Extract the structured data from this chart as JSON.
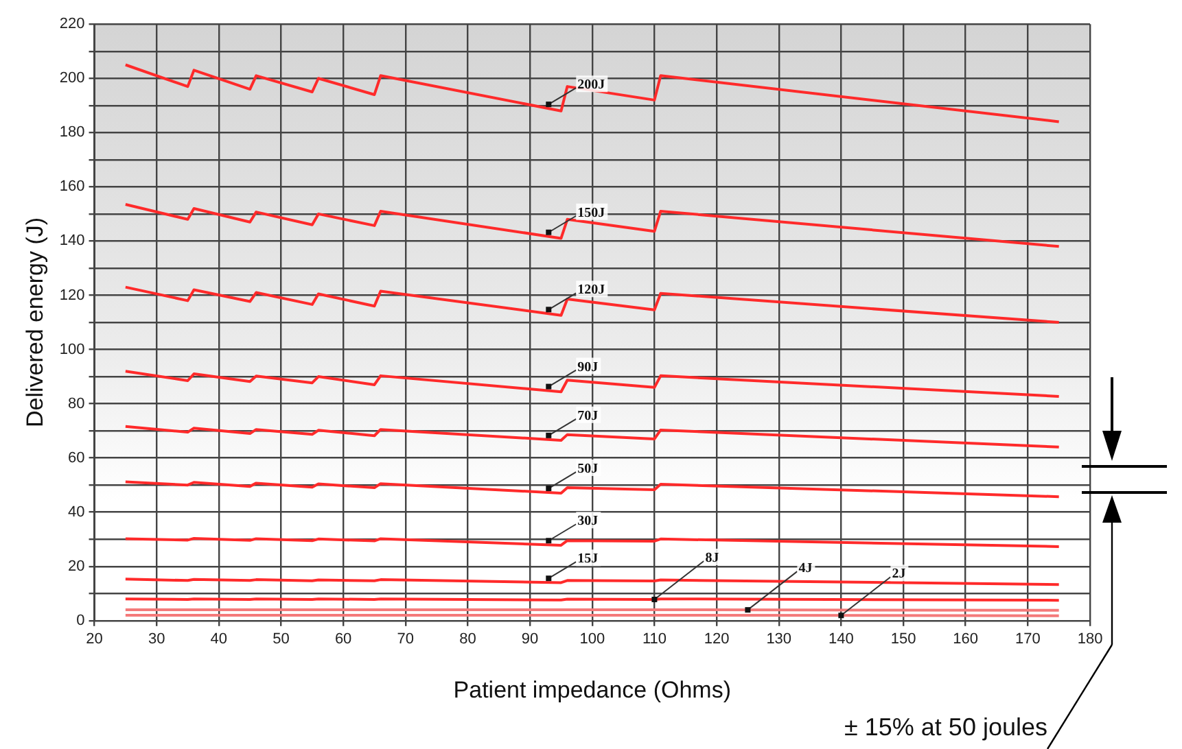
{
  "chart_data": {
    "type": "line",
    "xlabel": "Patient impedance (Ohms)",
    "ylabel": "Delivered energy (J)",
    "xlim": [
      20,
      180
    ],
    "xticks": [
      20,
      30,
      40,
      50,
      60,
      70,
      80,
      90,
      100,
      110,
      120,
      130,
      140,
      150,
      160,
      170,
      180
    ],
    "ylim": [
      0,
      220
    ],
    "yticks": [
      0,
      {
        "value": 10,
        "label": null
      },
      20,
      {
        "value": 30,
        "label": null
      },
      40,
      {
        "value": 50,
        "label": null
      },
      60,
      {
        "value": 70,
        "label": null
      },
      80,
      {
        "value": 90,
        "label": null
      },
      100,
      {
        "value": 110,
        "label": null
      },
      120,
      {
        "value": 130,
        "label": null
      },
      140,
      {
        "value": 150,
        "label": null
      },
      160,
      {
        "value": 170,
        "label": null
      },
      180,
      {
        "value": 190,
        "label": null
      },
      200,
      {
        "value": 210,
        "label": null
      },
      220
    ],
    "grid": true,
    "legend": false,
    "marker": "none",
    "line_style": "solid",
    "x": [
      25,
      35,
      36,
      45,
      46,
      55,
      56,
      65,
      66,
      95,
      96,
      110,
      111,
      175
    ],
    "series": [
      {
        "name": "200J",
        "color": "#ff2a2a",
        "values": [
          205,
          197,
          203,
          196,
          201,
          195,
          200,
          194,
          201,
          188,
          197,
          192,
          201,
          184
        ]
      },
      {
        "name": "150J",
        "color": "#ff2a2a",
        "values": [
          153.5,
          148,
          152,
          147,
          150.7,
          146,
          150,
          145.7,
          151,
          141,
          148,
          143.6,
          151,
          138
        ]
      },
      {
        "name": "120J",
        "color": "#ff2a2a",
        "values": [
          123,
          118,
          122,
          117.7,
          121,
          116.6,
          120.5,
          116,
          121.5,
          112.6,
          118.6,
          114.6,
          120.7,
          110
        ]
      },
      {
        "name": "90J",
        "color": "#ff2a2a",
        "values": [
          92,
          88.5,
          91,
          88.2,
          90.2,
          87.7,
          90,
          87,
          90.3,
          84.4,
          88.7,
          86,
          90.3,
          82.7
        ]
      },
      {
        "name": "70J",
        "color": "#ff2a2a",
        "values": [
          71.6,
          69.5,
          71,
          69,
          70.5,
          68.7,
          70.2,
          68.2,
          70.5,
          66.5,
          68.6,
          67,
          70.3,
          64
        ]
      },
      {
        "name": "50J",
        "color": "#ff2a2a",
        "values": [
          51.2,
          50,
          51,
          49.5,
          50.7,
          49.2,
          50.4,
          49,
          50.5,
          47,
          49,
          48.3,
          50.3,
          45.7
        ]
      },
      {
        "name": "30J",
        "color": "#ff2a2a",
        "values": [
          30.2,
          29.7,
          30.3,
          29.6,
          30.2,
          29.5,
          30.1,
          29.4,
          30.2,
          27.8,
          29.5,
          29.3,
          30.1,
          27.3
        ]
      },
      {
        "name": "15J",
        "color": "#ff2a2a",
        "values": [
          15.3,
          14.8,
          15.2,
          14.8,
          15.1,
          14.7,
          15,
          14.7,
          15.1,
          14,
          14.8,
          14.6,
          15,
          13.3
        ]
      },
      {
        "name": "8J",
        "color": "#ff2a2a",
        "values": [
          8,
          7.8,
          8,
          7.8,
          8,
          7.8,
          8,
          7.8,
          8,
          7.6,
          7.9,
          7.8,
          8,
          7.5
        ]
      },
      {
        "name": "4J",
        "color": "#f47a7a",
        "values": [
          4,
          4,
          4,
          4,
          4,
          4,
          4,
          4,
          4,
          4,
          4,
          4,
          4,
          3.8
        ]
      },
      {
        "name": "2J",
        "color": "#f47a7a",
        "values": [
          2,
          2,
          2,
          2,
          2,
          2,
          2,
          2,
          2,
          2,
          2,
          2,
          2,
          1.8
        ]
      }
    ],
    "annotations": [
      "± 15% at 50 joules"
    ]
  }
}
